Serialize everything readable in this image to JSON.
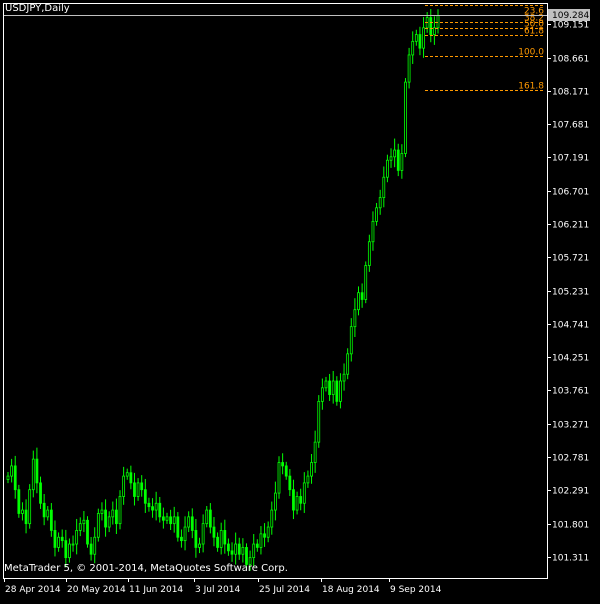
{
  "header": {
    "symbol_label": "USDJPY,Daily"
  },
  "footer": {
    "copyright": "MetaTrader 5, © 2001-2014, MetaQuotes Software Corp."
  },
  "colors": {
    "background": "#000000",
    "frame": "#ffffff",
    "candle": "#00ff00",
    "fibo": "#ff9900",
    "price_tag_bg": "#c0c0c0",
    "price_tag_text": "#000000",
    "axis_text": "#ffffff"
  },
  "chart_data": {
    "type": "candlestick",
    "symbol": "USDJPY",
    "timeframe": "Daily",
    "current_price": "109.284",
    "ylim": [
      101.0,
      109.45
    ],
    "y_ticks": [
      "109.151",
      "108.661",
      "108.171",
      "107.681",
      "107.191",
      "106.701",
      "106.211",
      "105.721",
      "105.231",
      "104.741",
      "104.251",
      "103.761",
      "103.271",
      "102.781",
      "102.291",
      "101.801",
      "101.311"
    ],
    "x_ticks": [
      "28 Apr 2014",
      "20 May 2014",
      "11 Jun 2014",
      "3 Jul 2014",
      "25 Jul 2014",
      "18 Aug 2014",
      "9 Sep 2014"
    ],
    "fibonacci_levels": [
      {
        "label": "",
        "price": 109.43
      },
      {
        "label": "23.6",
        "price": 109.29
      },
      {
        "label": "38.2",
        "price": 109.18
      },
      {
        "label": "50.0",
        "price": 109.09
      },
      {
        "label": "61.8",
        "price": 108.99
      },
      {
        "label": "100.0",
        "price": 108.69
      },
      {
        "label": "161.8",
        "price": 108.18
      }
    ],
    "closes": [
      102.5,
      102.65,
      102.3,
      101.95,
      102.0,
      101.8,
      102.3,
      102.75,
      102.4,
      102.1,
      101.9,
      102.0,
      101.7,
      101.45,
      101.6,
      101.55,
      101.3,
      101.5,
      101.5,
      101.7,
      101.8,
      101.85,
      101.5,
      101.35,
      101.6,
      101.95,
      102.0,
      101.75,
      101.9,
      102.0,
      101.8,
      102.2,
      102.5,
      102.55,
      102.4,
      102.2,
      102.4,
      102.3,
      102.1,
      102.05,
      102.0,
      102.1,
      101.9,
      101.85,
      101.9,
      101.8,
      101.9,
      101.6,
      101.55,
      101.75,
      101.9,
      101.7,
      101.45,
      101.5,
      101.8,
      102.0,
      101.75,
      101.6,
      101.45,
      101.7,
      101.5,
      101.4,
      101.35,
      101.5,
      101.35,
      101.45,
      101.2,
      101.3,
      101.5,
      101.45,
      101.65,
      101.6,
      101.75,
      102.0,
      102.25,
      102.7,
      102.65,
      102.5,
      102.3,
      102.0,
      102.2,
      102.1,
      102.4,
      102.5,
      102.7,
      103.0,
      103.6,
      103.8,
      103.9,
      103.7,
      103.9,
      103.6,
      103.9,
      104.0,
      104.3,
      104.7,
      104.95,
      105.2,
      105.1,
      105.6,
      105.95,
      106.25,
      106.45,
      106.6,
      106.9,
      107.15,
      107.2,
      107.3,
      107.0,
      107.25,
      108.3,
      108.7,
      108.9,
      109.0,
      108.8,
      109.1,
      109.25,
      109.0,
      109.1,
      109.28
    ]
  }
}
